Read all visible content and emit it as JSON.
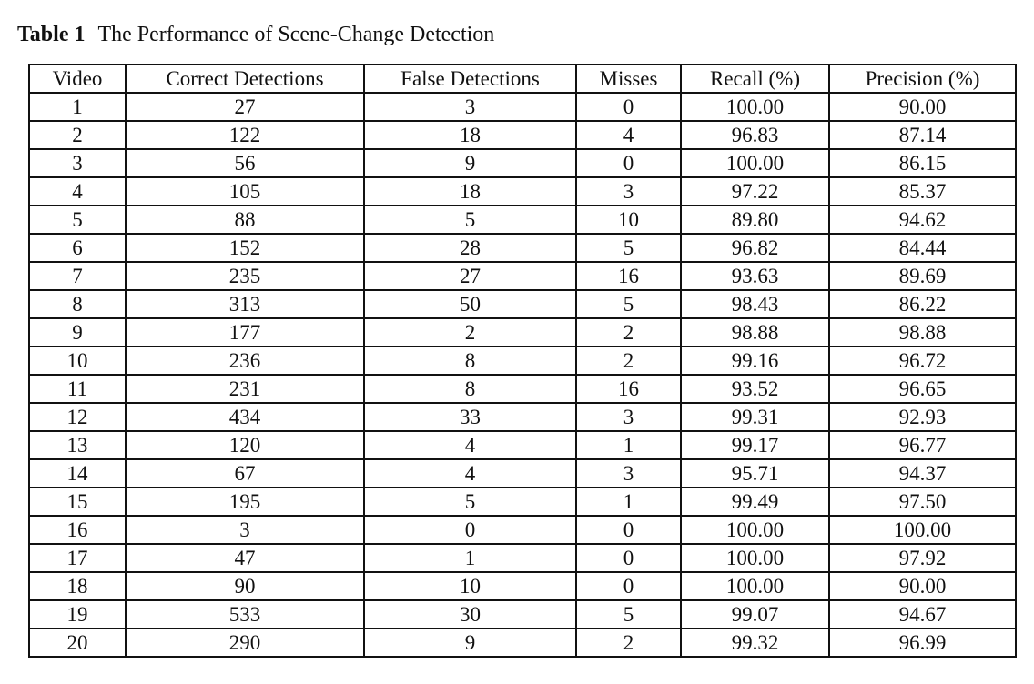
{
  "caption": {
    "label": "Table 1",
    "title": "The Performance of Scene-Change Detection"
  },
  "table": {
    "headers": [
      "Video",
      "Correct Detections",
      "False Detections",
      "Misses",
      "Recall (%)",
      "Precision (%)"
    ],
    "rows": [
      [
        "1",
        "27",
        "3",
        "0",
        "100.00",
        "90.00"
      ],
      [
        "2",
        "122",
        "18",
        "4",
        "96.83",
        "87.14"
      ],
      [
        "3",
        "56",
        "9",
        "0",
        "100.00",
        "86.15"
      ],
      [
        "4",
        "105",
        "18",
        "3",
        "97.22",
        "85.37"
      ],
      [
        "5",
        "88",
        "5",
        "10",
        "89.80",
        "94.62"
      ],
      [
        "6",
        "152",
        "28",
        "5",
        "96.82",
        "84.44"
      ],
      [
        "7",
        "235",
        "27",
        "16",
        "93.63",
        "89.69"
      ],
      [
        "8",
        "313",
        "50",
        "5",
        "98.43",
        "86.22"
      ],
      [
        "9",
        "177",
        "2",
        "2",
        "98.88",
        "98.88"
      ],
      [
        "10",
        "236",
        "8",
        "2",
        "99.16",
        "96.72"
      ],
      [
        "11",
        "231",
        "8",
        "16",
        "93.52",
        "96.65"
      ],
      [
        "12",
        "434",
        "33",
        "3",
        "99.31",
        "92.93"
      ],
      [
        "13",
        "120",
        "4",
        "1",
        "99.17",
        "96.77"
      ],
      [
        "14",
        "67",
        "4",
        "3",
        "95.71",
        "94.37"
      ],
      [
        "15",
        "195",
        "5",
        "1",
        "99.49",
        "97.50"
      ],
      [
        "16",
        "3",
        "0",
        "0",
        "100.00",
        "100.00"
      ],
      [
        "17",
        "47",
        "1",
        "0",
        "100.00",
        "97.92"
      ],
      [
        "18",
        "90",
        "10",
        "0",
        "100.00",
        "90.00"
      ],
      [
        "19",
        "533",
        "30",
        "5",
        "99.07",
        "94.67"
      ],
      [
        "20",
        "290",
        "9",
        "2",
        "99.32",
        "96.99"
      ]
    ]
  }
}
